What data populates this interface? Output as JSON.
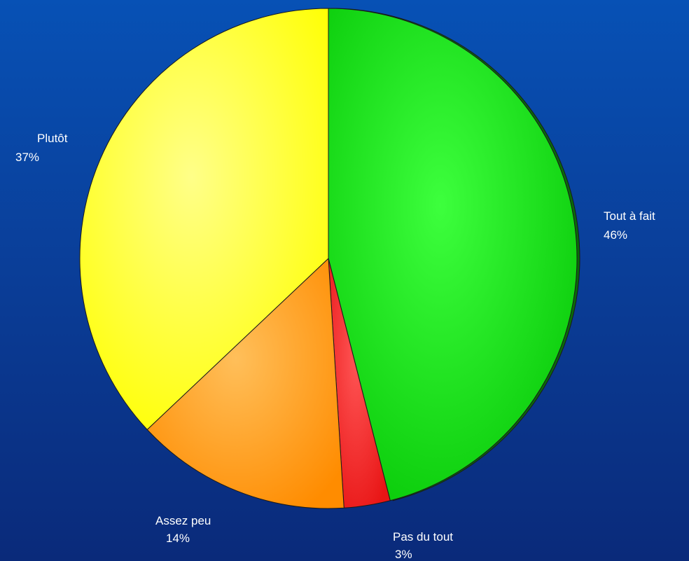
{
  "chart_data": {
    "type": "pie",
    "slices": [
      {
        "label": "Tout à fait",
        "value": 46,
        "value_label": "46%",
        "color": "#1ed31e"
      },
      {
        "label": "Pas du tout",
        "value": 3,
        "value_label": "3%",
        "color": "#ff2a2a"
      },
      {
        "label": "Assez peu",
        "value": 14,
        "value_label": "14%",
        "color": "#ff9a14"
      },
      {
        "label": "Plutôt",
        "value": 37,
        "value_label": "37%",
        "color": "#ffff22"
      }
    ],
    "start_angle_deg": 0,
    "direction": "clockwise",
    "legend": "none"
  }
}
